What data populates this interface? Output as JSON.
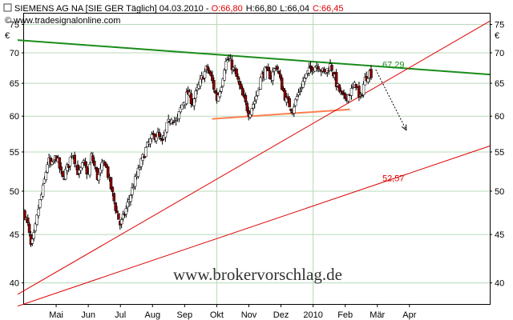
{
  "header": {
    "title": "SIEMENS AG NA [SIE GER  Täglich] 04.03.2010 - ",
    "open": "O:66,80",
    "high": "H:66,80",
    "low": "L:66,04",
    "close": "C:66,45",
    "copyright": "© www.tradesignalonline.com",
    "currency": "€",
    "checkbox_glyph": "☐"
  },
  "watermark": "www.brokervorschlag.de",
  "colors": {
    "background": "#ffffff",
    "grid": "#b8d8b8",
    "candle_up": "#ffffff",
    "candle_down": "#8b0000",
    "resistance": "#1a8c1a",
    "support": "#ff7f50",
    "trend": "#dd0000",
    "projection": "#000000"
  },
  "chart_data": {
    "type": "candlestick",
    "title": "SIEMENS AG NA [SIE GER  Täglich]",
    "y_axis": {
      "scale": "log",
      "range": [
        38,
        77
      ],
      "ticks": [
        40,
        45,
        50,
        55,
        60,
        65,
        70,
        75
      ],
      "unit": "€",
      "grid": true
    },
    "x_axis": {
      "range_months": [
        0,
        14.5
      ],
      "ticks": [
        "Mai",
        "Jun",
        "Jul",
        "Aug",
        "Sep",
        "Okt",
        "Nov",
        "Dez",
        "2010",
        "Feb",
        "Mär",
        "Apr"
      ],
      "tick_positions_months": [
        1,
        2,
        3,
        4,
        5,
        6,
        7,
        8,
        9,
        10,
        11,
        12
      ],
      "grid_at": [
        6,
        9
      ]
    },
    "price_path": [
      [
        0.0,
        47.5
      ],
      [
        0.12,
        46.0
      ],
      [
        0.22,
        43.5
      ],
      [
        0.32,
        45.0
      ],
      [
        0.45,
        48.0
      ],
      [
        0.6,
        50.5
      ],
      [
        0.75,
        54.0
      ],
      [
        0.85,
        53.0
      ],
      [
        1.0,
        54.5
      ],
      [
        1.2,
        51.5
      ],
      [
        1.4,
        53.5
      ],
      [
        1.5,
        55.2
      ],
      [
        1.7,
        52.0
      ],
      [
        1.85,
        53.5
      ],
      [
        2.0,
        52.0
      ],
      [
        2.1,
        54.5
      ],
      [
        2.3,
        51.5
      ],
      [
        2.5,
        54.0
      ],
      [
        2.7,
        50.5
      ],
      [
        2.85,
        48.0
      ],
      [
        3.0,
        46.0
      ],
      [
        3.15,
        47.5
      ],
      [
        3.35,
        50.0
      ],
      [
        3.6,
        53.0
      ],
      [
        3.8,
        55.5
      ],
      [
        4.0,
        57.0
      ],
      [
        4.15,
        57.5
      ],
      [
        4.3,
        56.0
      ],
      [
        4.45,
        58.5
      ],
      [
        4.6,
        60.0
      ],
      [
        4.75,
        59.0
      ],
      [
        4.9,
        61.5
      ],
      [
        5.1,
        63.5
      ],
      [
        5.25,
        62.0
      ],
      [
        5.4,
        64.0
      ],
      [
        5.55,
        66.0
      ],
      [
        5.7,
        67.5
      ],
      [
        5.85,
        65.5
      ],
      [
        6.0,
        62.5
      ],
      [
        6.15,
        65.0
      ],
      [
        6.25,
        68.0
      ],
      [
        6.35,
        69.0
      ],
      [
        6.5,
        67.5
      ],
      [
        6.65,
        65.5
      ],
      [
        6.8,
        63.0
      ],
      [
        7.0,
        60.5
      ],
      [
        7.2,
        62.5
      ],
      [
        7.35,
        65.5
      ],
      [
        7.5,
        67.0
      ],
      [
        7.7,
        66.0
      ],
      [
        7.85,
        68.0
      ],
      [
        8.0,
        65.0
      ],
      [
        8.15,
        62.5
      ],
      [
        8.35,
        61.0
      ],
      [
        8.55,
        63.5
      ],
      [
        8.75,
        66.0
      ],
      [
        8.95,
        67.5
      ],
      [
        9.15,
        68.0
      ],
      [
        9.35,
        66.5
      ],
      [
        9.55,
        68.0
      ],
      [
        9.75,
        64.5
      ],
      [
        9.95,
        62.5
      ],
      [
        10.15,
        63.5
      ],
      [
        10.35,
        65.0
      ],
      [
        10.45,
        62.0
      ],
      [
        10.6,
        65.5
      ],
      [
        10.75,
        66.8
      ],
      [
        10.83,
        66.45
      ]
    ],
    "last_candle": {
      "date": "04.03.2010",
      "open": 66.8,
      "high": 66.8,
      "low": 66.04,
      "close": 66.45
    },
    "lines": [
      {
        "name": "resistance",
        "color": "#1a8c1a",
        "from": [
          -0.2,
          72.2
        ],
        "to": [
          14.5,
          66.4
        ]
      },
      {
        "name": "support",
        "color": "#ff7f50",
        "from": [
          5.85,
          59.6
        ],
        "to": [
          10.15,
          61.0
        ]
      },
      {
        "name": "trend-upper",
        "color": "#dd0000",
        "from": [
          -0.2,
          38.9
        ],
        "to": [
          14.5,
          75.6
        ]
      },
      {
        "name": "trend-lower",
        "color": "#dd0000",
        "from": [
          -0.2,
          37.8
        ],
        "to": [
          14.5,
          55.8
        ]
      },
      {
        "name": "projection-arrow",
        "color": "#000000",
        "from": [
          10.95,
          67.2
        ],
        "to": [
          11.9,
          58.0
        ]
      }
    ],
    "annotations": [
      {
        "text": "67,29",
        "color": "#1a8c1a",
        "at": [
          11.5,
          67.5
        ]
      },
      {
        "text": "52,57",
        "color": "#dd0000",
        "at": [
          11.5,
          51.2
        ]
      }
    ]
  }
}
